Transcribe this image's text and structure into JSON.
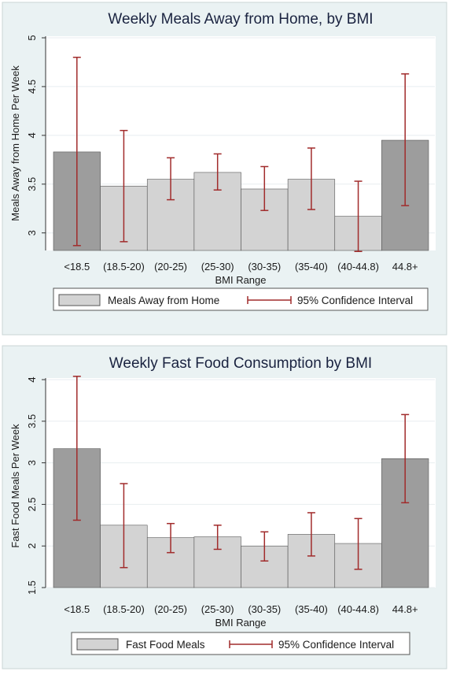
{
  "colors": {
    "page_bg": "#ffffff",
    "panel_bg": "#eaf2f3",
    "plot_bg": "#ffffff",
    "grid": "#e8eef0",
    "bar_light": "#d3d3d3",
    "bar_dark": "#9d9d9d",
    "bar_edge": "#555555",
    "ci": "#a12b2b",
    "title": "#1a2340"
  },
  "chart_data": [
    {
      "type": "bar",
      "title": "Weekly Meals Away from Home, by BMI",
      "xlabel": "BMI Range",
      "ylabel": "Meals Away from Home Per Week",
      "categories": [
        "<18.5",
        "(18.5-20)",
        "(20-25)",
        "(25-30)",
        "(30-35)",
        "(35-40)",
        "(40-44.8)",
        "44.8+"
      ],
      "values": [
        3.83,
        3.48,
        3.55,
        3.62,
        3.45,
        3.55,
        3.17,
        3.95
      ],
      "ci_low": [
        2.87,
        2.91,
        3.34,
        3.44,
        3.23,
        3.24,
        2.81,
        3.28
      ],
      "ci_high": [
        4.8,
        4.05,
        3.77,
        3.81,
        3.68,
        3.87,
        3.53,
        4.63
      ],
      "highlight": [
        true,
        false,
        false,
        false,
        false,
        false,
        false,
        true
      ],
      "baseline": 2.82,
      "ylim": [
        2.82,
        5
      ],
      "yticks": [
        "3",
        "3.5",
        "4",
        "4.5",
        "5"
      ],
      "grid": true,
      "legend": {
        "position": "bottom",
        "bar_label": "Meals Away from Home",
        "ci_label": "95% Confidence Interval"
      }
    },
    {
      "type": "bar",
      "title": "Weekly Fast Food Consumption by BMI",
      "xlabel": "BMI Range",
      "ylabel": "Fast Food Meals Per Week",
      "categories": [
        "<18.5",
        "(18.5-20)",
        "(20-25)",
        "(25-30)",
        "(30-35)",
        "(35-40)",
        "(40-44.8)",
        "44.8+"
      ],
      "values": [
        3.17,
        2.25,
        2.1,
        2.11,
        2.0,
        2.14,
        2.03,
        3.05
      ],
      "ci_low": [
        2.31,
        1.74,
        1.92,
        1.96,
        1.82,
        1.88,
        1.72,
        2.52
      ],
      "ci_high": [
        4.04,
        2.75,
        2.27,
        2.25,
        2.17,
        2.4,
        2.33,
        3.58
      ],
      "highlight": [
        true,
        false,
        false,
        false,
        false,
        false,
        false,
        true
      ],
      "baseline": 1.5,
      "ylim": [
        1.5,
        4.0
      ],
      "yticks": [
        "1.5",
        "2",
        "2.5",
        "3",
        "3.5",
        "4"
      ],
      "grid": true,
      "legend": {
        "position": "bottom",
        "bar_label": "Fast Food Meals",
        "ci_label": "95% Confidence Interval"
      }
    }
  ]
}
